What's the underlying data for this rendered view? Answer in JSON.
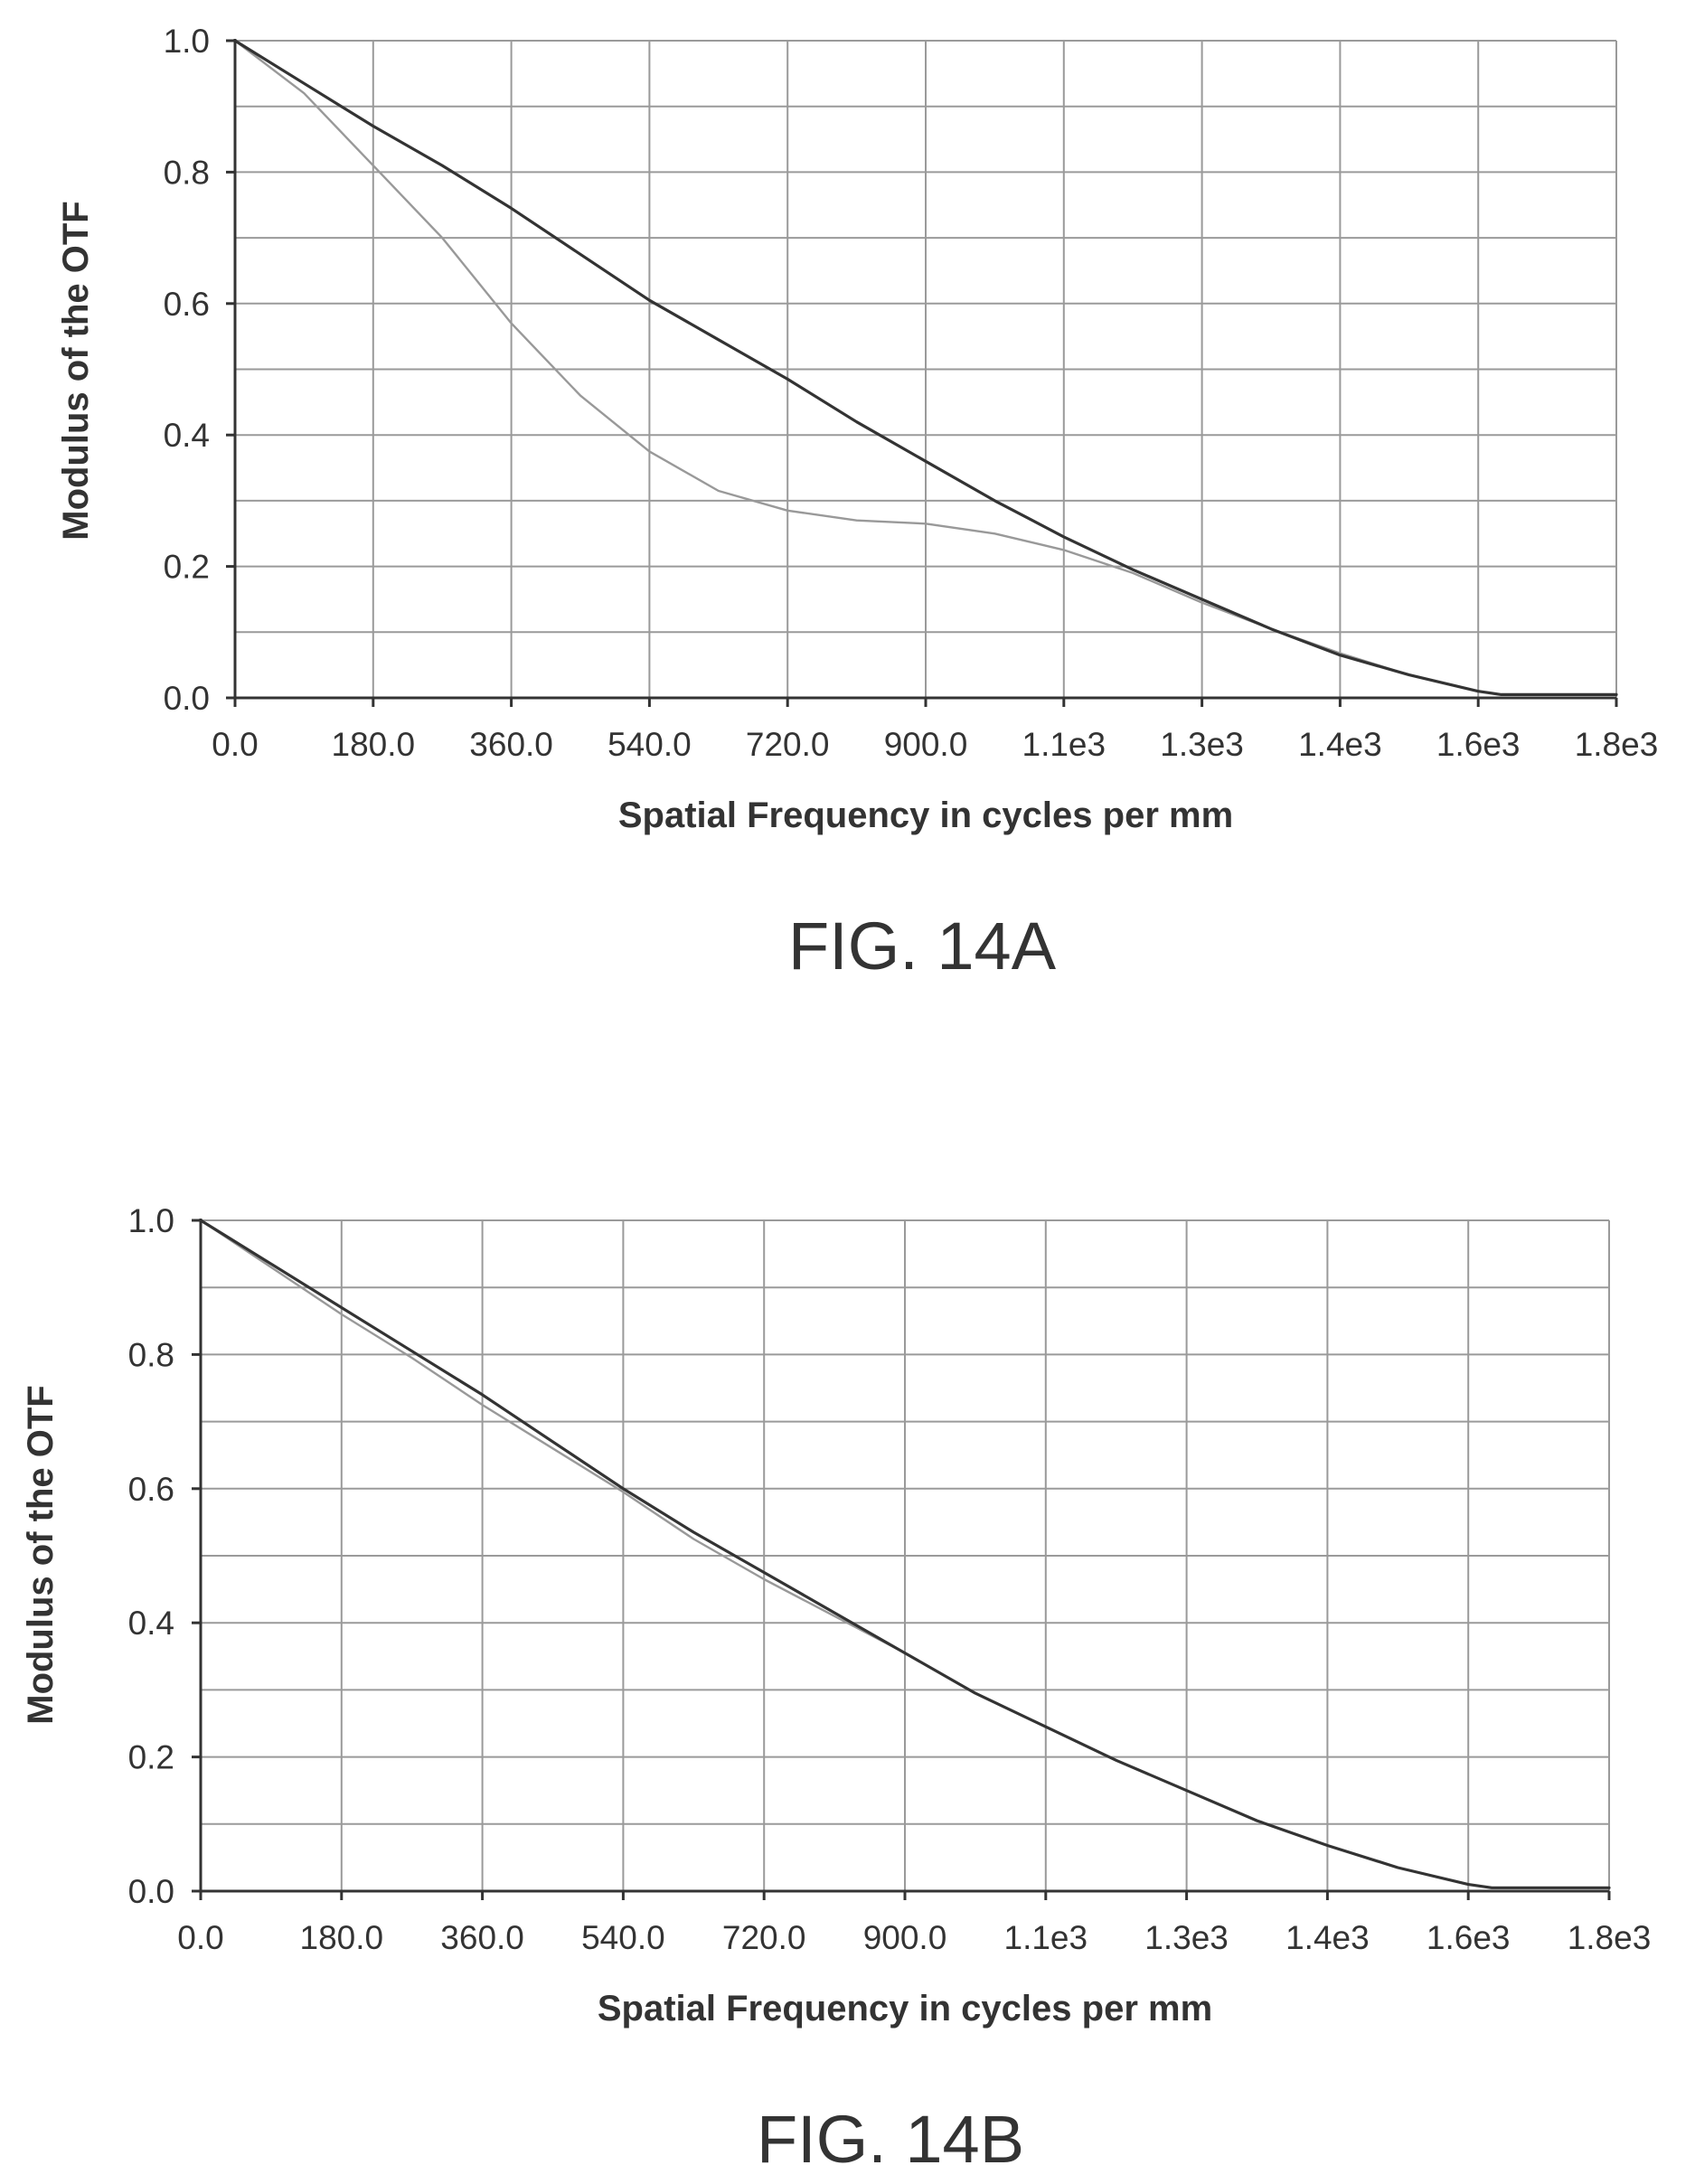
{
  "chart_data": [
    {
      "type": "line",
      "caption": "FIG. 14A",
      "xlabel": "Spatial Frequency in cycles per mm",
      "ylabel": "Modulus of the OTF",
      "x_tick_labels": [
        "0.0",
        "180.0",
        "360.0",
        "540.0",
        "720.0",
        "900.0",
        "1.1e3",
        "1.3e3",
        "1.4e3",
        "1.6e3",
        "1.8e3"
      ],
      "y_tick_labels": [
        "0.0",
        "0.2",
        "0.4",
        "0.6",
        "0.8",
        "1.0"
      ],
      "xlim": [
        0,
        1800
      ],
      "ylim": [
        0,
        1.0
      ],
      "grid": true,
      "series": [
        {
          "color": "#333333",
          "x": [
            0,
            90,
            180,
            270,
            360,
            450,
            540,
            630,
            720,
            810,
            900,
            990,
            1080,
            1170,
            1260,
            1350,
            1440,
            1530,
            1620,
            1650,
            1800
          ],
          "y": [
            1.0,
            0.935,
            0.87,
            0.81,
            0.745,
            0.675,
            0.605,
            0.545,
            0.485,
            0.42,
            0.36,
            0.3,
            0.245,
            0.195,
            0.15,
            0.105,
            0.065,
            0.035,
            0.01,
            0.005,
            0.005
          ]
        },
        {
          "color": "#999999",
          "x": [
            0,
            90,
            180,
            270,
            360,
            450,
            540,
            630,
            720,
            810,
            900,
            990,
            1080,
            1170,
            1260,
            1350,
            1440,
            1530,
            1620,
            1650,
            1800
          ],
          "y": [
            1.0,
            0.92,
            0.81,
            0.7,
            0.57,
            0.46,
            0.375,
            0.315,
            0.285,
            0.27,
            0.265,
            0.25,
            0.225,
            0.19,
            0.145,
            0.105,
            0.068,
            0.035,
            0.01,
            0.005,
            0.005
          ]
        }
      ]
    },
    {
      "type": "line",
      "caption": "FIG. 14B",
      "xlabel": "Spatial Frequency in cycles per mm",
      "ylabel": "Modulus of the OTF",
      "x_tick_labels": [
        "0.0",
        "180.0",
        "360.0",
        "540.0",
        "720.0",
        "900.0",
        "1.1e3",
        "1.3e3",
        "1.4e3",
        "1.6e3",
        "1.8e3"
      ],
      "y_tick_labels": [
        "0.0",
        "0.2",
        "0.4",
        "0.6",
        "0.8",
        "1.0"
      ],
      "xlim": [
        0,
        1800
      ],
      "ylim": [
        0,
        1.0
      ],
      "grid": true,
      "series": [
        {
          "color": "#333333",
          "x": [
            0,
            90,
            180,
            270,
            360,
            450,
            540,
            630,
            720,
            810,
            900,
            990,
            1080,
            1170,
            1260,
            1350,
            1440,
            1530,
            1620,
            1650,
            1800
          ],
          "y": [
            1.0,
            0.935,
            0.87,
            0.805,
            0.74,
            0.67,
            0.6,
            0.535,
            0.475,
            0.415,
            0.355,
            0.295,
            0.245,
            0.195,
            0.15,
            0.105,
            0.068,
            0.035,
            0.01,
            0.005,
            0.005
          ]
        },
        {
          "color": "#999999",
          "x": [
            0,
            90,
            180,
            270,
            360,
            450,
            540,
            630,
            720,
            810,
            900,
            990,
            1080,
            1170,
            1260,
            1350,
            1440,
            1530,
            1620,
            1650,
            1800
          ],
          "y": [
            1.0,
            0.93,
            0.86,
            0.795,
            0.725,
            0.66,
            0.595,
            0.525,
            0.465,
            0.41,
            0.355,
            0.295,
            0.245,
            0.195,
            0.15,
            0.105,
            0.068,
            0.035,
            0.01,
            0.005,
            0.005
          ]
        }
      ]
    }
  ]
}
